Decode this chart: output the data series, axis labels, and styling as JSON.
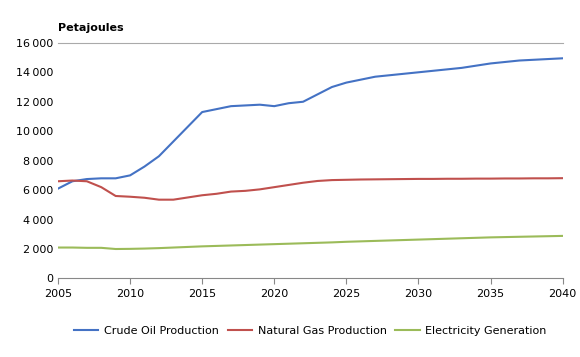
{
  "ylabel": "Petajoules",
  "ylim": [
    0,
    16000
  ],
  "yticks": [
    0,
    2000,
    4000,
    6000,
    8000,
    10000,
    12000,
    14000,
    16000
  ],
  "xlim": [
    2005,
    2040
  ],
  "xticks": [
    2005,
    2010,
    2015,
    2020,
    2025,
    2030,
    2035,
    2040
  ],
  "crude_oil": {
    "x": [
      2005,
      2006,
      2007,
      2008,
      2009,
      2010,
      2011,
      2012,
      2013,
      2014,
      2015,
      2016,
      2017,
      2018,
      2019,
      2020,
      2021,
      2022,
      2023,
      2024,
      2025,
      2026,
      2027,
      2028,
      2029,
      2030,
      2031,
      2032,
      2033,
      2034,
      2035,
      2036,
      2037,
      2038,
      2039,
      2040
    ],
    "y": [
      6100,
      6600,
      6750,
      6800,
      6800,
      7000,
      7600,
      8300,
      9300,
      10300,
      11300,
      11500,
      11700,
      11750,
      11800,
      11700,
      11900,
      12000,
      12500,
      13000,
      13300,
      13500,
      13700,
      13800,
      13900,
      14000,
      14100,
      14200,
      14300,
      14450,
      14600,
      14700,
      14800,
      14850,
      14900,
      14950
    ],
    "color": "#4472C4",
    "label": "Crude Oil Production"
  },
  "natural_gas": {
    "x": [
      2005,
      2006,
      2007,
      2008,
      2009,
      2010,
      2011,
      2012,
      2013,
      2014,
      2015,
      2016,
      2017,
      2018,
      2019,
      2020,
      2021,
      2022,
      2023,
      2024,
      2025,
      2026,
      2027,
      2028,
      2029,
      2030,
      2031,
      2032,
      2033,
      2034,
      2035,
      2036,
      2037,
      2038,
      2039,
      2040
    ],
    "y": [
      6600,
      6650,
      6600,
      6200,
      5600,
      5550,
      5480,
      5350,
      5350,
      5500,
      5650,
      5750,
      5900,
      5950,
      6050,
      6200,
      6350,
      6500,
      6620,
      6680,
      6700,
      6720,
      6730,
      6740,
      6750,
      6760,
      6760,
      6770,
      6770,
      6780,
      6780,
      6790,
      6790,
      6800,
      6800,
      6810
    ],
    "color": "#C0504D",
    "label": "Natural Gas Production"
  },
  "electricity": {
    "x": [
      2005,
      2006,
      2007,
      2008,
      2009,
      2010,
      2011,
      2012,
      2013,
      2014,
      2015,
      2016,
      2017,
      2018,
      2019,
      2020,
      2021,
      2022,
      2023,
      2024,
      2025,
      2026,
      2027,
      2028,
      2029,
      2030,
      2031,
      2032,
      2033,
      2034,
      2035,
      2036,
      2037,
      2038,
      2039,
      2040
    ],
    "y": [
      2100,
      2100,
      2080,
      2080,
      2000,
      2010,
      2030,
      2060,
      2100,
      2140,
      2180,
      2210,
      2240,
      2270,
      2300,
      2330,
      2360,
      2390,
      2420,
      2450,
      2490,
      2520,
      2550,
      2580,
      2610,
      2640,
      2670,
      2700,
      2730,
      2760,
      2790,
      2810,
      2830,
      2850,
      2870,
      2890
    ],
    "color": "#9BBB59",
    "label": "Electricity Generation"
  },
  "background_color": "#FFFFFF",
  "plot_bg_color": "#FFFFFF",
  "linewidth": 1.5,
  "top_border_color": "#AAAAAA",
  "ylabel_fontsize": 8,
  "ylabel_bold": true,
  "tick_fontsize": 8,
  "legend_fontsize": 8
}
